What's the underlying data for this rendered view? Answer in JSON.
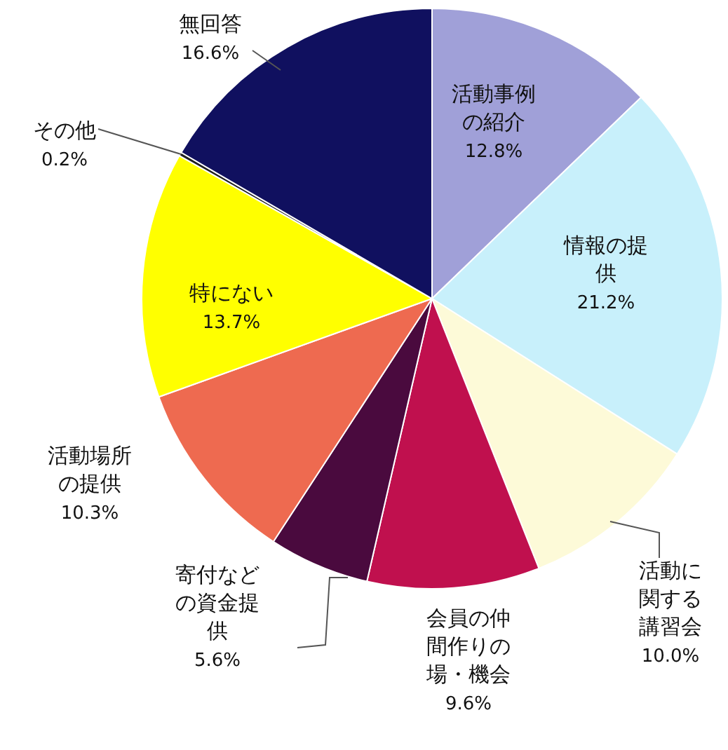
{
  "chart_data": {
    "type": "pie",
    "categories": [
      "活動事例の紹介",
      "情報の提供",
      "活動に関する講習会",
      "会員の仲間作りの場・機会",
      "寄付などの資金提供",
      "活動場所の提供",
      "特にない",
      "その他",
      "無回答"
    ],
    "values": [
      12.8,
      21.2,
      10.0,
      9.6,
      5.6,
      10.3,
      13.7,
      0.2,
      16.6
    ],
    "value_labels": [
      "12.8%",
      "21.2%",
      "10.0%",
      "9.6%",
      "5.6%",
      "10.3%",
      "13.7%",
      "0.2%",
      "16.6%"
    ],
    "colors": [
      "#a0a0d8",
      "#c8f0fb",
      "#fdfad8",
      "#c0104e",
      "#4a0a3e",
      "#ee6a50",
      "#ffff00",
      "#202020",
      "#10105f"
    ]
  }
}
